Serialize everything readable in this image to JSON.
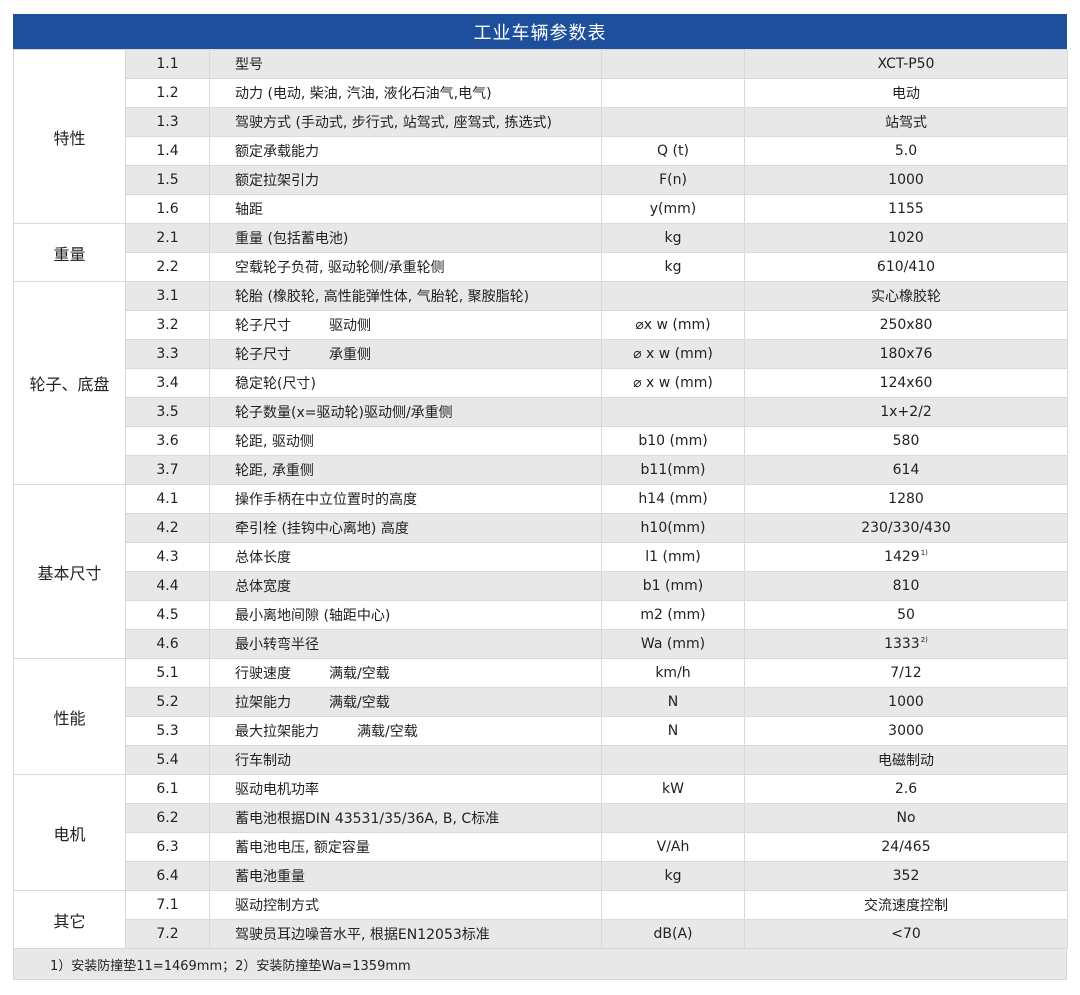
{
  "title": "工业车辆参数表",
  "groups": [
    {
      "name": "特性",
      "rows": [
        {
          "no": "1.1",
          "desc": "型号",
          "sub": "",
          "unit": "",
          "value": "XCT-P50",
          "sup": ""
        },
        {
          "no": "1.2",
          "desc": "动力 (电动, 柴油, 汽油, 液化石油气,电气)",
          "sub": "",
          "unit": "",
          "value": "电动",
          "sup": ""
        },
        {
          "no": "1.3",
          "desc": "驾驶方式 (手动式, 步行式, 站驾式, 座驾式, 拣选式)",
          "sub": "",
          "unit": "",
          "value": "站驾式",
          "sup": ""
        },
        {
          "no": "1.4",
          "desc": "额定承载能力",
          "sub": "",
          "unit": "Q (t)",
          "value": "5.0",
          "sup": ""
        },
        {
          "no": "1.5",
          "desc": "额定拉架引力",
          "sub": "",
          "unit": "F(n)",
          "value": "1000",
          "sup": ""
        },
        {
          "no": "1.6",
          "desc": "轴距",
          "sub": "",
          "unit": "y(mm)",
          "value": "1155",
          "sup": ""
        }
      ]
    },
    {
      "name": "重量",
      "rows": [
        {
          "no": "2.1",
          "desc": "重量 (包括蓄电池)",
          "sub": "",
          "unit": "kg",
          "value": "1020",
          "sup": ""
        },
        {
          "no": "2.2",
          "desc": "空载轮子负荷, 驱动轮侧/承重轮侧",
          "sub": "",
          "unit": "kg",
          "value": "610/410",
          "sup": ""
        }
      ]
    },
    {
      "name": "轮子、底盘",
      "rows": [
        {
          "no": "3.1",
          "desc": "轮胎 (橡胶轮, 高性能弹性体, 气胎轮, 聚胺脂轮)",
          "sub": "",
          "unit": "",
          "value": "实心橡胶轮",
          "sup": ""
        },
        {
          "no": "3.2",
          "desc": "轮子尺寸",
          "sub": "驱动侧",
          "unit": "⌀x w (mm)",
          "value": "250x80",
          "sup": ""
        },
        {
          "no": "3.3",
          "desc": "轮子尺寸",
          "sub": "承重侧",
          "unit": "⌀ x w (mm)",
          "value": "180x76",
          "sup": ""
        },
        {
          "no": "3.4",
          "desc": "稳定轮(尺寸)",
          "sub": "",
          "unit": "⌀ x w (mm)",
          "value": "124x60",
          "sup": ""
        },
        {
          "no": "3.5",
          "desc": "轮子数量(x=驱动轮)驱动侧/承重侧",
          "sub": "",
          "unit": "",
          "value": "1x+2/2",
          "sup": ""
        },
        {
          "no": "3.6",
          "desc": "轮距, 驱动侧",
          "sub": "",
          "unit": "b10 (mm)",
          "value": "580",
          "sup": ""
        },
        {
          "no": "3.7",
          "desc": "轮距, 承重侧",
          "sub": "",
          "unit": "b11(mm)",
          "value": "614",
          "sup": ""
        }
      ]
    },
    {
      "name": "基本尺寸",
      "rows": [
        {
          "no": "4.1",
          "desc": "操作手柄在中立位置时的高度",
          "sub": "",
          "unit": "h14 (mm)",
          "value": "1280",
          "sup": ""
        },
        {
          "no": "4.2",
          "desc": "牵引栓 (挂钩中心离地) 高度",
          "sub": "",
          "unit": "h10(mm)",
          "value": "230/330/430",
          "sup": ""
        },
        {
          "no": "4.3",
          "desc": "总体长度",
          "sub": "",
          "unit": "l1 (mm)",
          "value": "1429",
          "sup": "1)"
        },
        {
          "no": "4.4",
          "desc": "总体宽度",
          "sub": "",
          "unit": "b1 (mm)",
          "value": "810",
          "sup": ""
        },
        {
          "no": "4.5",
          "desc": "最小离地间隙 (轴距中心)",
          "sub": "",
          "unit": "m2 (mm)",
          "value": "50",
          "sup": ""
        },
        {
          "no": "4.6",
          "desc": "最小转弯半径",
          "sub": "",
          "unit": "Wa (mm)",
          "value": "1333",
          "sup": "2)"
        }
      ]
    },
    {
      "name": "性能",
      "rows": [
        {
          "no": "5.1",
          "desc": "行驶速度",
          "sub": "满载/空载",
          "unit": "km/h",
          "value": "7/12",
          "sup": ""
        },
        {
          "no": "5.2",
          "desc": "拉架能力",
          "sub": "满载/空载",
          "unit": "N",
          "value": "1000",
          "sup": ""
        },
        {
          "no": "5.3",
          "desc": "最大拉架能力",
          "sub": "满载/空载",
          "unit": "N",
          "value": "3000",
          "sup": ""
        },
        {
          "no": "5.4",
          "desc": "行车制动",
          "sub": "",
          "unit": "",
          "value": "电磁制动",
          "sup": ""
        }
      ]
    },
    {
      "name": "电机",
      "rows": [
        {
          "no": "6.1",
          "desc": "驱动电机功率",
          "sub": "",
          "unit": "kW",
          "value": "2.6",
          "sup": ""
        },
        {
          "no": "6.2",
          "desc": "蓄电池根据DIN 43531/35/36A, B, C标准",
          "sub": "",
          "unit": "",
          "value": "No",
          "sup": ""
        },
        {
          "no": "6.3",
          "desc": "蓄电池电压, 额定容量",
          "sub": "",
          "unit": "V/Ah",
          "value": "24/465",
          "sup": ""
        },
        {
          "no": "6.4",
          "desc": "蓄电池重量",
          "sub": "",
          "unit": "kg",
          "value": "352",
          "sup": ""
        }
      ]
    },
    {
      "name": "其它",
      "rows": [
        {
          "no": "7.1",
          "desc": "驱动控制方式",
          "sub": "",
          "unit": "",
          "value": "交流速度控制",
          "sup": ""
        },
        {
          "no": "7.2",
          "desc": "驾驶员耳边噪音水平, 根据EN12053标准",
          "sub": "",
          "unit": "dB(A)",
          "value": "<70",
          "sup": ""
        }
      ]
    }
  ],
  "footnote": "1）安装防撞垫11=1469mm；2）安装防撞垫Wa=1359mm",
  "colors": {
    "header_bg": "#1d4f9c",
    "stripe": "#e8e8e8",
    "border": "#d9d9d9"
  }
}
